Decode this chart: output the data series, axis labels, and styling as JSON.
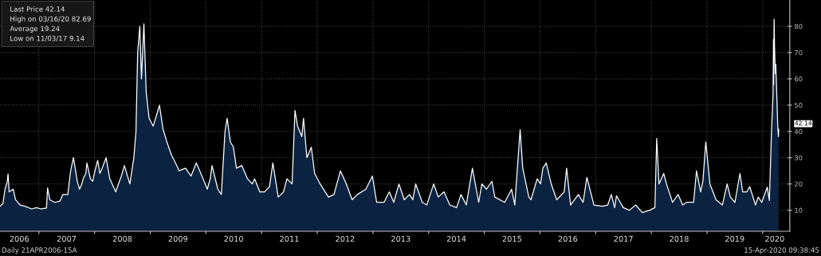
{
  "chart_data": {
    "type": "area",
    "x": [
      "2006-04-21",
      "2006-05-10",
      "2006-05-24",
      "2006-06-08",
      "2006-06-13",
      "2006-06-20",
      "2006-07-17",
      "2006-08-01",
      "2006-09-01",
      "2006-10-01",
      "2006-11-15",
      "2006-12-15",
      "2007-01-15",
      "2007-02-20",
      "2007-02-27",
      "2007-03-14",
      "2007-04-15",
      "2007-05-20",
      "2007-06-07",
      "2007-07-10",
      "2007-07-26",
      "2007-08-01",
      "2007-08-16",
      "2007-09-10",
      "2007-09-25",
      "2007-10-10",
      "2007-10-19",
      "2007-11-05",
      "2007-11-12",
      "2007-12-05",
      "2007-12-20",
      "2008-01-04",
      "2008-01-22",
      "2008-02-05",
      "2008-02-20",
      "2008-03-17",
      "2008-04-10",
      "2008-05-19",
      "2008-06-25",
      "2008-07-15",
      "2008-08-20",
      "2008-09-15",
      "2008-09-29",
      "2008-10-10",
      "2008-10-24",
      "2008-11-04",
      "2008-11-20",
      "2008-12-05",
      "2008-12-24",
      "2009-01-20",
      "2009-02-10",
      "2009-03-02",
      "2009-03-25",
      "2009-04-20",
      "2009-05-20",
      "2009-06-15",
      "2009-07-10",
      "2009-08-20",
      "2009-09-25",
      "2009-10-30",
      "2009-12-20",
      "2010-01-10",
      "2010-01-29",
      "2010-02-10",
      "2010-03-20",
      "2010-04-12",
      "2010-05-06",
      "2010-05-20",
      "2010-06-10",
      "2010-06-30",
      "2010-07-20",
      "2010-08-24",
      "2010-09-30",
      "2010-11-01",
      "2010-11-16",
      "2010-12-20",
      "2011-01-20",
      "2011-02-22",
      "2011-03-16",
      "2011-04-20",
      "2011-05-25",
      "2011-06-16",
      "2011-07-20",
      "2011-08-08",
      "2011-08-25",
      "2011-09-22",
      "2011-10-03",
      "2011-10-25",
      "2011-11-23",
      "2011-12-15",
      "2012-01-20",
      "2012-03-15",
      "2012-04-20",
      "2012-06-01",
      "2012-07-10",
      "2012-08-17",
      "2012-09-20",
      "2012-11-15",
      "2012-12-28",
      "2013-01-25",
      "2013-03-14",
      "2013-04-18",
      "2013-05-17",
      "2013-06-20",
      "2013-07-25",
      "2013-08-28",
      "2013-09-19",
      "2013-10-08",
      "2013-11-20",
      "2013-12-20",
      "2014-02-03",
      "2014-03-05",
      "2014-04-11",
      "2014-05-20",
      "2014-07-03",
      "2014-08-01",
      "2014-09-05",
      "2014-10-15",
      "2014-11-25",
      "2014-12-16",
      "2015-01-15",
      "2015-02-20",
      "2015-03-11",
      "2015-05-15",
      "2015-06-29",
      "2015-07-20",
      "2015-08-24",
      "2015-09-10",
      "2015-10-20",
      "2015-11-03",
      "2015-12-14",
      "2016-01-05",
      "2016-01-20",
      "2016-02-11",
      "2016-03-15",
      "2016-04-20",
      "2016-06-08",
      "2016-06-24",
      "2016-07-20",
      "2016-09-09",
      "2016-10-10",
      "2016-11-04",
      "2016-12-20",
      "2017-02-15",
      "2017-03-21",
      "2017-04-13",
      "2017-05-05",
      "2017-05-17",
      "2017-07-01",
      "2017-08-10",
      "2017-09-20",
      "2017-11-03",
      "2017-12-20",
      "2018-01-24",
      "2018-02-05",
      "2018-02-20",
      "2018-03-23",
      "2018-04-10",
      "2018-05-20",
      "2018-06-25",
      "2018-07-25",
      "2018-08-20",
      "2018-10-05",
      "2018-10-24",
      "2018-11-20",
      "2018-12-05",
      "2018-12-24",
      "2019-01-20",
      "2019-03-01",
      "2019-04-12",
      "2019-05-13",
      "2019-06-03",
      "2019-07-03",
      "2019-08-05",
      "2019-08-23",
      "2019-09-20",
      "2019-10-08",
      "2019-11-15",
      "2019-12-03",
      "2019-12-26",
      "2020-01-31",
      "2020-02-14",
      "2020-02-28",
      "2020-03-09",
      "2020-03-12",
      "2020-03-13",
      "2020-03-16",
      "2020-03-19",
      "2020-03-24",
      "2020-03-27",
      "2020-04-01",
      "2020-04-09",
      "2020-04-14",
      "2020-04-15"
    ],
    "series": [
      {
        "color": "#0b2340",
        "values": [
          11.5,
          12.5,
          18,
          21,
          23.8,
          17,
          18,
          14,
          12,
          11.5,
          10.5,
          11,
          10.5,
          10.8,
          18.5,
          14,
          13,
          13.5,
          16,
          16,
          24,
          26,
          30,
          21,
          18,
          20,
          22,
          24,
          28,
          22,
          21,
          25,
          29,
          24,
          26,
          30,
          22,
          17,
          23,
          27,
          20,
          30,
          40,
          70,
          80,
          60,
          80.9,
          55,
          45,
          42,
          46,
          50,
          41,
          36,
          31,
          28,
          25,
          26,
          23,
          28,
          21,
          18,
          22,
          27,
          18,
          16,
          40,
          45,
          36,
          34,
          26,
          27,
          22,
          20,
          22,
          17,
          17,
          19,
          28,
          15,
          17,
          22,
          20,
          48,
          42,
          38,
          45,
          30,
          34,
          24,
          20,
          15,
          16,
          25,
          20,
          14,
          16,
          18,
          23,
          13,
          13,
          17,
          13,
          20,
          14,
          16,
          14,
          20,
          13,
          12,
          20,
          15,
          17,
          12,
          11,
          16,
          12,
          26,
          13,
          20,
          18,
          21,
          15,
          13,
          18,
          12,
          40.7,
          26,
          15,
          14,
          22,
          20,
          26,
          28,
          20,
          14,
          17,
          26,
          12,
          16,
          13,
          22.5,
          12,
          11.5,
          12,
          16,
          11,
          15.5,
          11,
          10,
          12,
          9.1,
          10,
          11,
          37.3,
          20,
          24,
          20,
          13,
          16,
          12,
          13,
          13,
          25,
          17,
          21,
          36,
          20,
          14,
          12,
          20,
          15,
          13,
          24,
          17,
          17,
          19,
          12,
          15,
          13,
          18.8,
          13.7,
          40,
          54,
          75,
          57.8,
          82.7,
          72,
          62,
          65.5,
          57,
          41.7,
          38,
          40.8
        ]
      }
    ],
    "xlim": [
      "2006-04-21",
      "2020-06-27"
    ],
    "xticks": [
      {
        "value": "2007-01-01",
        "label": null
      },
      {
        "value": "2008-01-01",
        "label": null
      },
      {
        "value": "2009-01-01",
        "label": null
      },
      {
        "value": "2010-01-01",
        "label": null
      },
      {
        "value": "2011-01-01",
        "label": null
      },
      {
        "value": "2012-01-01",
        "label": null
      },
      {
        "value": "2013-01-01",
        "label": null
      },
      {
        "value": "2014-01-01",
        "label": null
      },
      {
        "value": "2015-01-01",
        "label": null
      },
      {
        "value": "2016-01-01",
        "label": null
      },
      {
        "value": "2017-01-01",
        "label": null
      },
      {
        "value": "2018-01-01",
        "label": null
      },
      {
        "value": "2019-01-01",
        "label": null
      },
      {
        "value": "2020-01-01",
        "label": null
      },
      {
        "value": "2006-08-26",
        "label": "2006"
      },
      {
        "value": "2007-07-02",
        "label": "2007"
      },
      {
        "value": "2008-07-02",
        "label": "2008"
      },
      {
        "value": "2009-07-02",
        "label": "2009"
      },
      {
        "value": "2010-07-02",
        "label": "2010"
      },
      {
        "value": "2011-07-02",
        "label": "2011"
      },
      {
        "value": "2012-07-02",
        "label": "2012"
      },
      {
        "value": "2013-07-02",
        "label": "2013"
      },
      {
        "value": "2014-07-02",
        "label": "2014"
      },
      {
        "value": "2015-07-02",
        "label": "2015"
      },
      {
        "value": "2016-07-02",
        "label": "2016"
      },
      {
        "value": "2017-07-02",
        "label": "2017"
      },
      {
        "value": "2018-07-02",
        "label": "2018"
      },
      {
        "value": "2019-07-02",
        "label": "2019"
      },
      {
        "value": "2020-03-20",
        "label": "2020"
      }
    ],
    "ylim": [
      2,
      90
    ],
    "yticks": [
      10,
      20,
      30,
      40,
      50,
      60,
      70,
      80
    ],
    "grid": true,
    "annotations": [
      "Last Price 42.14",
      "High on 03/16/20 82.69",
      "Average 19.24",
      "Low on 11/03/17 9.14",
      "Daily 21APR2006-15A",
      "15-Apr-2020 09:38:45",
      {
        "text": "42.14",
        "x": "2020-04-15",
        "y": 42.14
      }
    ]
  }
}
